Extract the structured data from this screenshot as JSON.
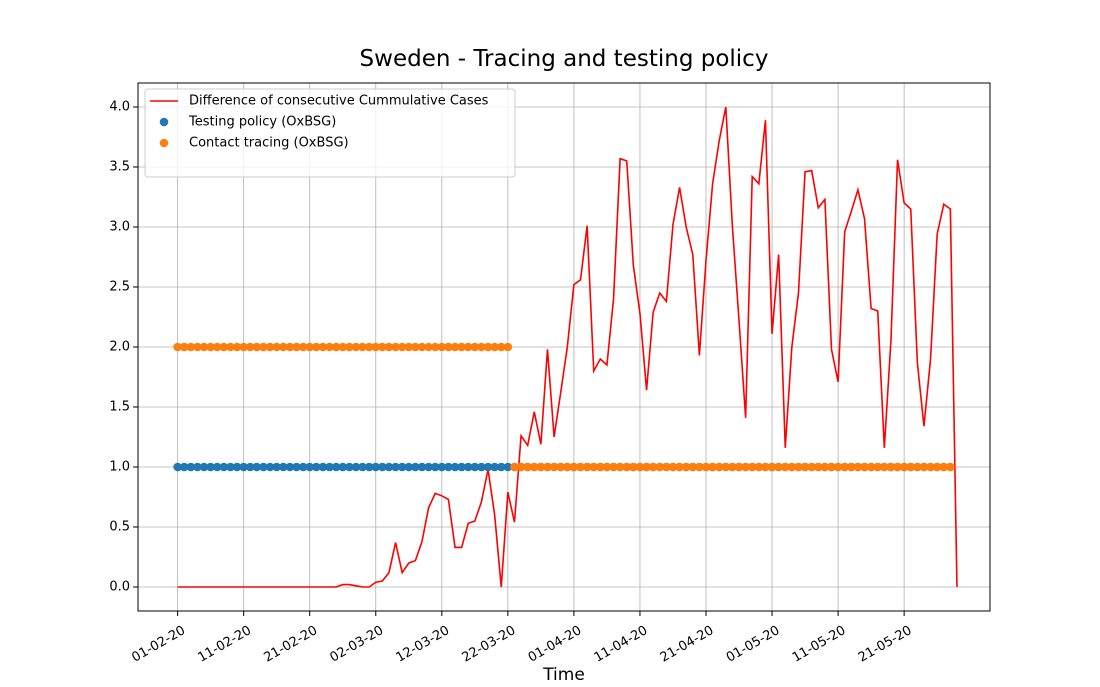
{
  "chart_data": {
    "type": "line",
    "title": "Sweden - Tracing and testing policy",
    "x_label": "Time",
    "x": [
      "2020-02-01",
      "2020-02-02",
      "2020-02-03",
      "2020-02-04",
      "2020-02-05",
      "2020-02-06",
      "2020-02-07",
      "2020-02-08",
      "2020-02-09",
      "2020-02-10",
      "2020-02-11",
      "2020-02-12",
      "2020-02-13",
      "2020-02-14",
      "2020-02-15",
      "2020-02-16",
      "2020-02-17",
      "2020-02-18",
      "2020-02-19",
      "2020-02-20",
      "2020-02-21",
      "2020-02-22",
      "2020-02-23",
      "2020-02-24",
      "2020-02-25",
      "2020-02-26",
      "2020-02-27",
      "2020-02-28",
      "2020-02-29",
      "2020-03-01",
      "2020-03-02",
      "2020-03-03",
      "2020-03-04",
      "2020-03-05",
      "2020-03-06",
      "2020-03-07",
      "2020-03-08",
      "2020-03-09",
      "2020-03-10",
      "2020-03-11",
      "2020-03-12",
      "2020-03-13",
      "2020-03-14",
      "2020-03-15",
      "2020-03-16",
      "2020-03-17",
      "2020-03-18",
      "2020-03-19",
      "2020-03-20",
      "2020-03-21",
      "2020-03-22",
      "2020-03-23",
      "2020-03-24",
      "2020-03-25",
      "2020-03-26",
      "2020-03-27",
      "2020-03-28",
      "2020-03-29",
      "2020-03-30",
      "2020-03-31",
      "2020-04-01",
      "2020-04-02",
      "2020-04-03",
      "2020-04-04",
      "2020-04-05",
      "2020-04-06",
      "2020-04-07",
      "2020-04-08",
      "2020-04-09",
      "2020-04-10",
      "2020-04-11",
      "2020-04-12",
      "2020-04-13",
      "2020-04-14",
      "2020-04-15",
      "2020-04-16",
      "2020-04-17",
      "2020-04-18",
      "2020-04-19",
      "2020-04-20",
      "2020-04-21",
      "2020-04-22",
      "2020-04-23",
      "2020-04-24",
      "2020-04-25",
      "2020-04-26",
      "2020-04-27",
      "2020-04-28",
      "2020-04-29",
      "2020-04-30",
      "2020-05-01",
      "2020-05-02",
      "2020-05-03",
      "2020-05-04",
      "2020-05-05",
      "2020-05-06",
      "2020-05-07",
      "2020-05-08",
      "2020-05-09",
      "2020-05-10",
      "2020-05-11",
      "2020-05-12",
      "2020-05-13",
      "2020-05-14",
      "2020-05-15",
      "2020-05-16",
      "2020-05-17",
      "2020-05-18",
      "2020-05-19",
      "2020-05-20",
      "2020-05-21",
      "2020-05-22",
      "2020-05-23",
      "2020-05-24",
      "2020-05-25",
      "2020-05-26",
      "2020-05-27",
      "2020-05-28",
      "2020-05-29"
    ],
    "series": [
      {
        "name": "Difference of consecutive Cummulative Cases",
        "type": "line",
        "color": "#ff0000",
        "values": [
          0,
          0,
          0,
          0,
          0,
          0,
          0,
          0,
          0,
          0,
          0,
          0,
          0,
          0,
          0,
          0,
          0,
          0,
          0,
          0,
          0,
          0,
          0,
          0,
          0,
          0.02,
          0.02,
          0.01,
          0.0,
          0.0,
          0.04,
          0.05,
          0.12,
          0.37,
          0.12,
          0.2,
          0.22,
          0.38,
          0.66,
          0.78,
          0.76,
          0.73,
          0.33,
          0.33,
          0.53,
          0.55,
          0.71,
          0.98,
          0.6,
          0.0,
          0.79,
          0.54,
          1.26,
          1.18,
          1.46,
          1.19,
          1.98,
          1.25,
          1.62,
          2.0,
          2.52,
          2.56,
          3.01,
          1.8,
          1.9,
          1.85,
          2.4,
          3.57,
          3.55,
          2.68,
          2.28,
          1.64,
          2.29,
          2.45,
          2.38,
          3.02,
          3.33,
          3.0,
          2.77,
          1.93,
          2.72,
          3.36,
          3.72,
          4.0,
          3.0,
          2.22,
          1.41,
          3.42,
          3.36,
          3.89,
          2.11,
          2.77,
          1.16,
          2.0,
          2.45,
          3.46,
          3.47,
          3.16,
          3.23,
          1.98,
          1.71,
          2.96,
          3.13,
          3.31,
          3.07,
          2.32,
          2.3,
          1.16,
          2.05,
          3.56,
          3.2,
          3.15,
          1.87,
          1.34,
          1.9,
          2.94,
          3.19,
          3.15,
          0.0
        ]
      },
      {
        "name": "Testing policy (OxBSG)",
        "type": "scatter",
        "color": "#1f77b4",
        "values": [
          1,
          1,
          1,
          1,
          1,
          1,
          1,
          1,
          1,
          1,
          1,
          1,
          1,
          1,
          1,
          1,
          1,
          1,
          1,
          1,
          1,
          1,
          1,
          1,
          1,
          1,
          1,
          1,
          1,
          1,
          1,
          1,
          1,
          1,
          1,
          1,
          1,
          1,
          1,
          1,
          1,
          1,
          1,
          1,
          1,
          1,
          1,
          1,
          1,
          1,
          1,
          1,
          1,
          1,
          1,
          1,
          1,
          1,
          1,
          1,
          1,
          1,
          1,
          1,
          1,
          1,
          1,
          1,
          1,
          1,
          1,
          1,
          1,
          1,
          1,
          1,
          1,
          1,
          1,
          1,
          1,
          1,
          1,
          1,
          1,
          1,
          1,
          1,
          1,
          1,
          1,
          1,
          1,
          1,
          1,
          1,
          1,
          1,
          1,
          1,
          1,
          1,
          1,
          1,
          1,
          1,
          1,
          1,
          1,
          1,
          1,
          1,
          1,
          1,
          1,
          1,
          1,
          1,
          null
        ]
      },
      {
        "name": "Contact tracing (OxBSG)",
        "type": "scatter",
        "color": "#ff7f0e",
        "values": [
          2,
          2,
          2,
          2,
          2,
          2,
          2,
          2,
          2,
          2,
          2,
          2,
          2,
          2,
          2,
          2,
          2,
          2,
          2,
          2,
          2,
          2,
          2,
          2,
          2,
          2,
          2,
          2,
          2,
          2,
          2,
          2,
          2,
          2,
          2,
          2,
          2,
          2,
          2,
          2,
          2,
          2,
          2,
          2,
          2,
          2,
          2,
          2,
          2,
          2,
          2,
          1,
          1,
          1,
          1,
          1,
          1,
          1,
          1,
          1,
          1,
          1,
          1,
          1,
          1,
          1,
          1,
          1,
          1,
          1,
          1,
          1,
          1,
          1,
          1,
          1,
          1,
          1,
          1,
          1,
          1,
          1,
          1,
          1,
          1,
          1,
          1,
          1,
          1,
          1,
          1,
          1,
          1,
          1,
          1,
          1,
          1,
          1,
          1,
          1,
          1,
          1,
          1,
          1,
          1,
          1,
          1,
          1,
          1,
          1,
          1,
          1,
          1,
          1,
          1,
          1,
          1,
          1,
          null
        ]
      }
    ],
    "xlim": [
      "2020-01-26",
      "2020-06-03"
    ],
    "xticks": [
      {
        "value": "2020-02-01",
        "label": "01-02-20"
      },
      {
        "value": "2020-02-11",
        "label": "11-02-20"
      },
      {
        "value": "2020-02-21",
        "label": "21-02-20"
      },
      {
        "value": "2020-03-02",
        "label": "02-03-20"
      },
      {
        "value": "2020-03-12",
        "label": "12-03-20"
      },
      {
        "value": "2020-03-22",
        "label": "22-03-20"
      },
      {
        "value": "2020-04-01",
        "label": "01-04-20"
      },
      {
        "value": "2020-04-11",
        "label": "11-04-20"
      },
      {
        "value": "2020-04-21",
        "label": "21-04-20"
      },
      {
        "value": "2020-05-01",
        "label": "01-05-20"
      },
      {
        "value": "2020-05-11",
        "label": "11-05-20"
      },
      {
        "value": "2020-05-21",
        "label": "21-05-20"
      }
    ],
    "ylim": [
      -0.2,
      4.2
    ],
    "yticks": [
      {
        "value": 0,
        "label": "0.0"
      },
      {
        "value": 0.5,
        "label": "0.5"
      },
      {
        "value": 1,
        "label": "1.0"
      },
      {
        "value": 1.5,
        "label": "1.5"
      },
      {
        "value": 2,
        "label": "2.0"
      },
      {
        "value": 2.5,
        "label": "2.5"
      },
      {
        "value": 3,
        "label": "3.0"
      },
      {
        "value": 3.5,
        "label": "3.5"
      },
      {
        "value": 4,
        "label": "4.0"
      }
    ],
    "grid": true,
    "legend": "upper left"
  }
}
